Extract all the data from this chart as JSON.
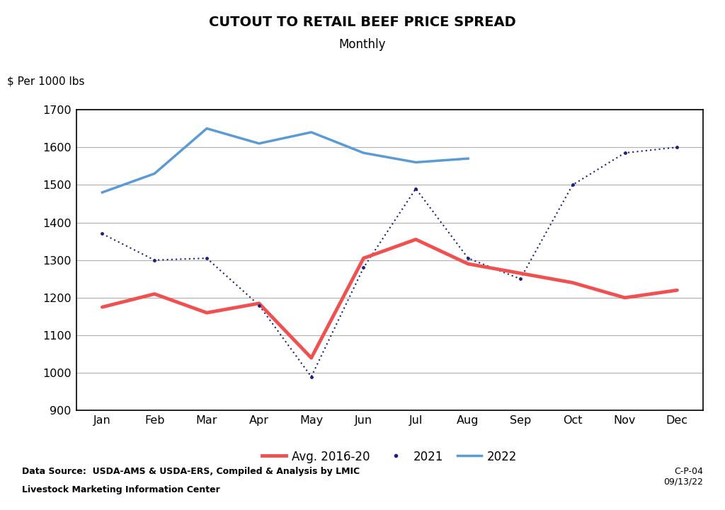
{
  "title": "CUTOUT TO RETAIL BEEF PRICE SPREAD",
  "subtitle": "Monthly",
  "ylabel": "$ Per 1000 lbs",
  "months": [
    "Jan",
    "Feb",
    "Mar",
    "Apr",
    "May",
    "Jun",
    "Jul",
    "Aug",
    "Sep",
    "Oct",
    "Nov",
    "Dec"
  ],
  "avg_2016_20": [
    1175,
    1210,
    1160,
    1185,
    1040,
    1305,
    1355,
    1290,
    1265,
    1240,
    1200,
    1220
  ],
  "year_2021": [
    1370,
    1300,
    1305,
    1180,
    990,
    1280,
    1490,
    1305,
    1250,
    1500,
    1585,
    1600
  ],
  "year_2022": [
    1480,
    1530,
    1650,
    1610,
    1640,
    1585,
    1560,
    1570,
    null,
    null,
    null,
    null
  ],
  "ylim": [
    900,
    1700
  ],
  "yticks": [
    900,
    1000,
    1100,
    1200,
    1300,
    1400,
    1500,
    1600,
    1700
  ],
  "avg_color": "#F05050",
  "year2021_color": "#1a237e",
  "year2022_color": "#5B9BD5",
  "source_text": "Data Source:  USDA-AMS & USDA-ERS, Compiled & Analysis by LMIC",
  "org_text": "Livestock Marketing Information Center",
  "code_text": "C-P-04\n09/13/22",
  "legend_labels": [
    "Avg. 2016-20",
    "2021",
    "2022"
  ],
  "background_color": "#ffffff",
  "grid_color": "#b0b0b0"
}
